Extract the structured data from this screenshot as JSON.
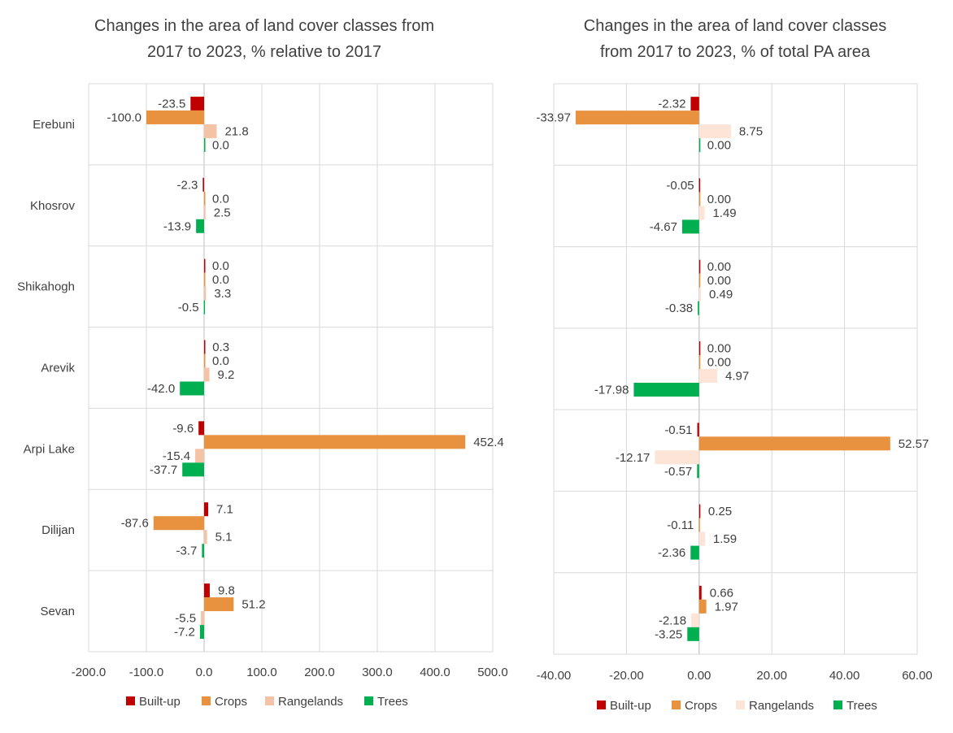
{
  "chart_data": [
    {
      "type": "bar",
      "orientation": "horizontal",
      "title": "Changes in  the area of land cover classes from 2017 to 2023, % relative to 2017",
      "title_lines": [
        "Changes in  the area of land cover classes from",
        "2017 to 2023, % relative to 2017"
      ],
      "categories": [
        "Erebuni",
        "Khosrov",
        "Shikahogh",
        "Arevik",
        "Arpi Lake",
        "Dilijan",
        "Sevan"
      ],
      "xlim": [
        -200,
        500
      ],
      "xticks": [
        -200,
        -100,
        0,
        100,
        200,
        300,
        400,
        500
      ],
      "xtick_labels": [
        "-200.0",
        "-100.0",
        "0.0",
        "100.0",
        "200.0",
        "300.0",
        "400.0",
        "500.0"
      ],
      "grid": true,
      "legend": "bottom",
      "decimals": 1,
      "series": [
        {
          "name": "Built-up",
          "color": "#C00000",
          "values": [
            -23.5,
            -2.3,
            0.0,
            0.3,
            -9.6,
            7.1,
            9.8
          ]
        },
        {
          "name": "Crops",
          "color": "#E8913F",
          "values": [
            -100.0,
            0.0,
            0.0,
            0.0,
            452.4,
            -87.6,
            51.2
          ]
        },
        {
          "name": "Rangelands",
          "color": "#F4C3A5",
          "values": [
            21.8,
            2.5,
            3.3,
            9.2,
            -15.4,
            5.1,
            -5.5
          ]
        },
        {
          "name": "Trees",
          "color": "#00B050",
          "values": [
            0.0,
            -13.9,
            -0.5,
            -42.0,
            -37.7,
            -3.7,
            -7.2
          ]
        }
      ]
    },
    {
      "type": "bar",
      "orientation": "horizontal",
      "title": "Changes in  the area of land cover classes from 2017 to 2023, % of total PA area",
      "title_lines": [
        "Changes in  the area of land cover classes",
        "from 2017 to 2023, % of total PA area"
      ],
      "categories": [
        "Erebuni",
        "Khosrov",
        "Shikahogh",
        "Arevik",
        "Arpi Lake",
        "Dilijan",
        "Sevan"
      ],
      "xlim": [
        -40,
        60
      ],
      "xticks": [
        -40,
        -20,
        0,
        20,
        40,
        60
      ],
      "xtick_labels": [
        "-40.00",
        "-20.00",
        "0.00",
        "20.00",
        "40.00",
        "60.00"
      ],
      "grid": true,
      "legend": "bottom",
      "decimals": 2,
      "series": [
        {
          "name": "Built-up",
          "color": "#C00000",
          "values": [
            -2.32,
            -0.05,
            0.0,
            0.0,
            -0.51,
            0.25,
            0.66
          ]
        },
        {
          "name": "Crops",
          "color": "#E8913F",
          "values": [
            -33.97,
            0.0,
            0.0,
            0.0,
            52.57,
            -0.11,
            1.97
          ]
        },
        {
          "name": "Rangelands",
          "color": "#FCE4D6",
          "values": [
            8.75,
            1.49,
            0.49,
            4.97,
            -12.17,
            1.59,
            -2.18
          ]
        },
        {
          "name": "Trees",
          "color": "#00B050",
          "values": [
            0.0,
            -4.67,
            -0.38,
            -17.98,
            -0.57,
            -2.36,
            -3.25
          ]
        }
      ]
    }
  ]
}
